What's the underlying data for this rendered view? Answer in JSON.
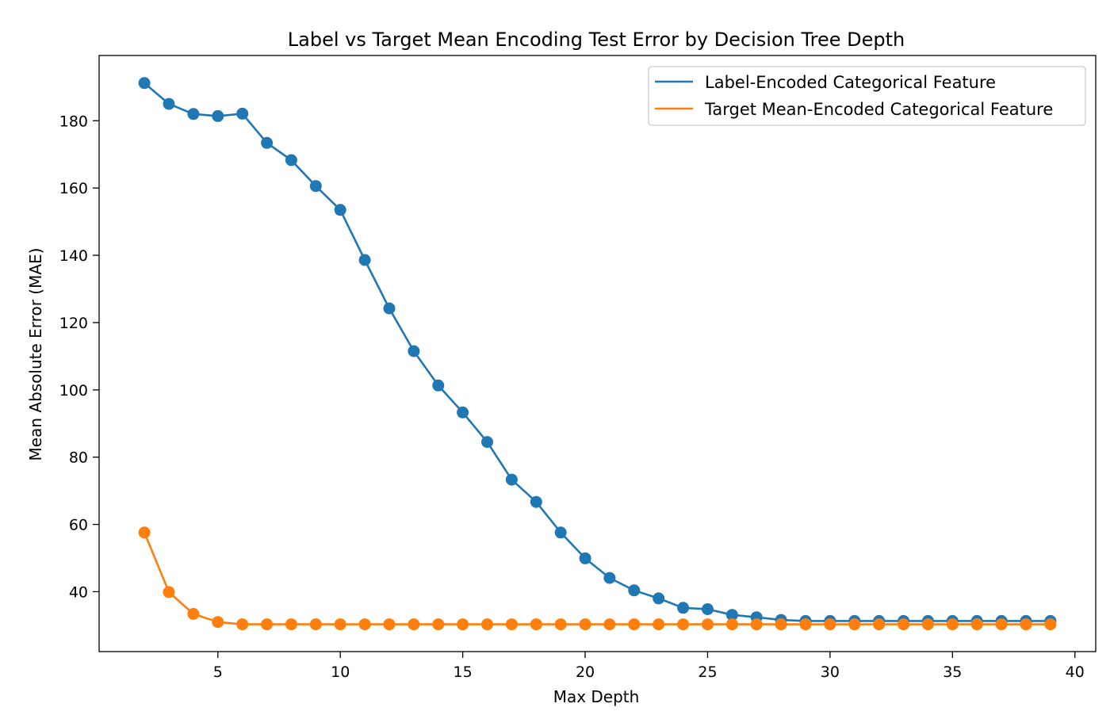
{
  "chart_data": {
    "type": "line",
    "title": "Label vs Target Mean Encoding Test Error by Decision Tree Depth",
    "xlabel": "Max Depth",
    "ylabel": "Mean Absolute Error (MAE)",
    "xlim": [
      0.15,
      40.85
    ],
    "ylim": [
      22.2,
      199.4
    ],
    "xticks": [
      5,
      10,
      15,
      20,
      25,
      30,
      35,
      40
    ],
    "yticks": [
      40,
      60,
      80,
      100,
      120,
      140,
      160,
      180
    ],
    "grid": false,
    "legend_position": "top-right",
    "x": [
      2,
      3,
      4,
      5,
      6,
      7,
      8,
      9,
      10,
      11,
      12,
      13,
      14,
      15,
      16,
      17,
      18,
      19,
      20,
      21,
      22,
      23,
      24,
      25,
      26,
      27,
      28,
      29,
      30,
      31,
      32,
      33,
      34,
      35,
      36,
      37,
      38,
      39
    ],
    "series": [
      {
        "name": "Label-Encoded Categorical Feature",
        "color": "#1f77b4",
        "values": [
          191.2,
          185.0,
          182.0,
          181.4,
          182.1,
          173.4,
          168.3,
          160.6,
          153.5,
          138.6,
          124.2,
          111.5,
          101.3,
          93.3,
          84.5,
          73.3,
          66.7,
          57.6,
          49.9,
          44.1,
          40.4,
          38.0,
          35.2,
          34.8,
          33.1,
          32.4,
          31.6,
          31.3,
          31.3,
          31.3,
          31.3,
          31.3,
          31.3,
          31.3,
          31.3,
          31.3,
          31.3,
          31.3
        ]
      },
      {
        "name": "Target Mean-Encoded Categorical Feature",
        "color": "#ff7f0e",
        "values": [
          57.6,
          39.9,
          33.4,
          31.0,
          30.3,
          30.3,
          30.3,
          30.3,
          30.3,
          30.3,
          30.3,
          30.3,
          30.3,
          30.3,
          30.3,
          30.3,
          30.3,
          30.3,
          30.3,
          30.3,
          30.3,
          30.3,
          30.3,
          30.3,
          30.3,
          30.3,
          30.3,
          30.3,
          30.3,
          30.3,
          30.3,
          30.3,
          30.3,
          30.3,
          30.3,
          30.3,
          30.3,
          30.3
        ]
      }
    ]
  }
}
